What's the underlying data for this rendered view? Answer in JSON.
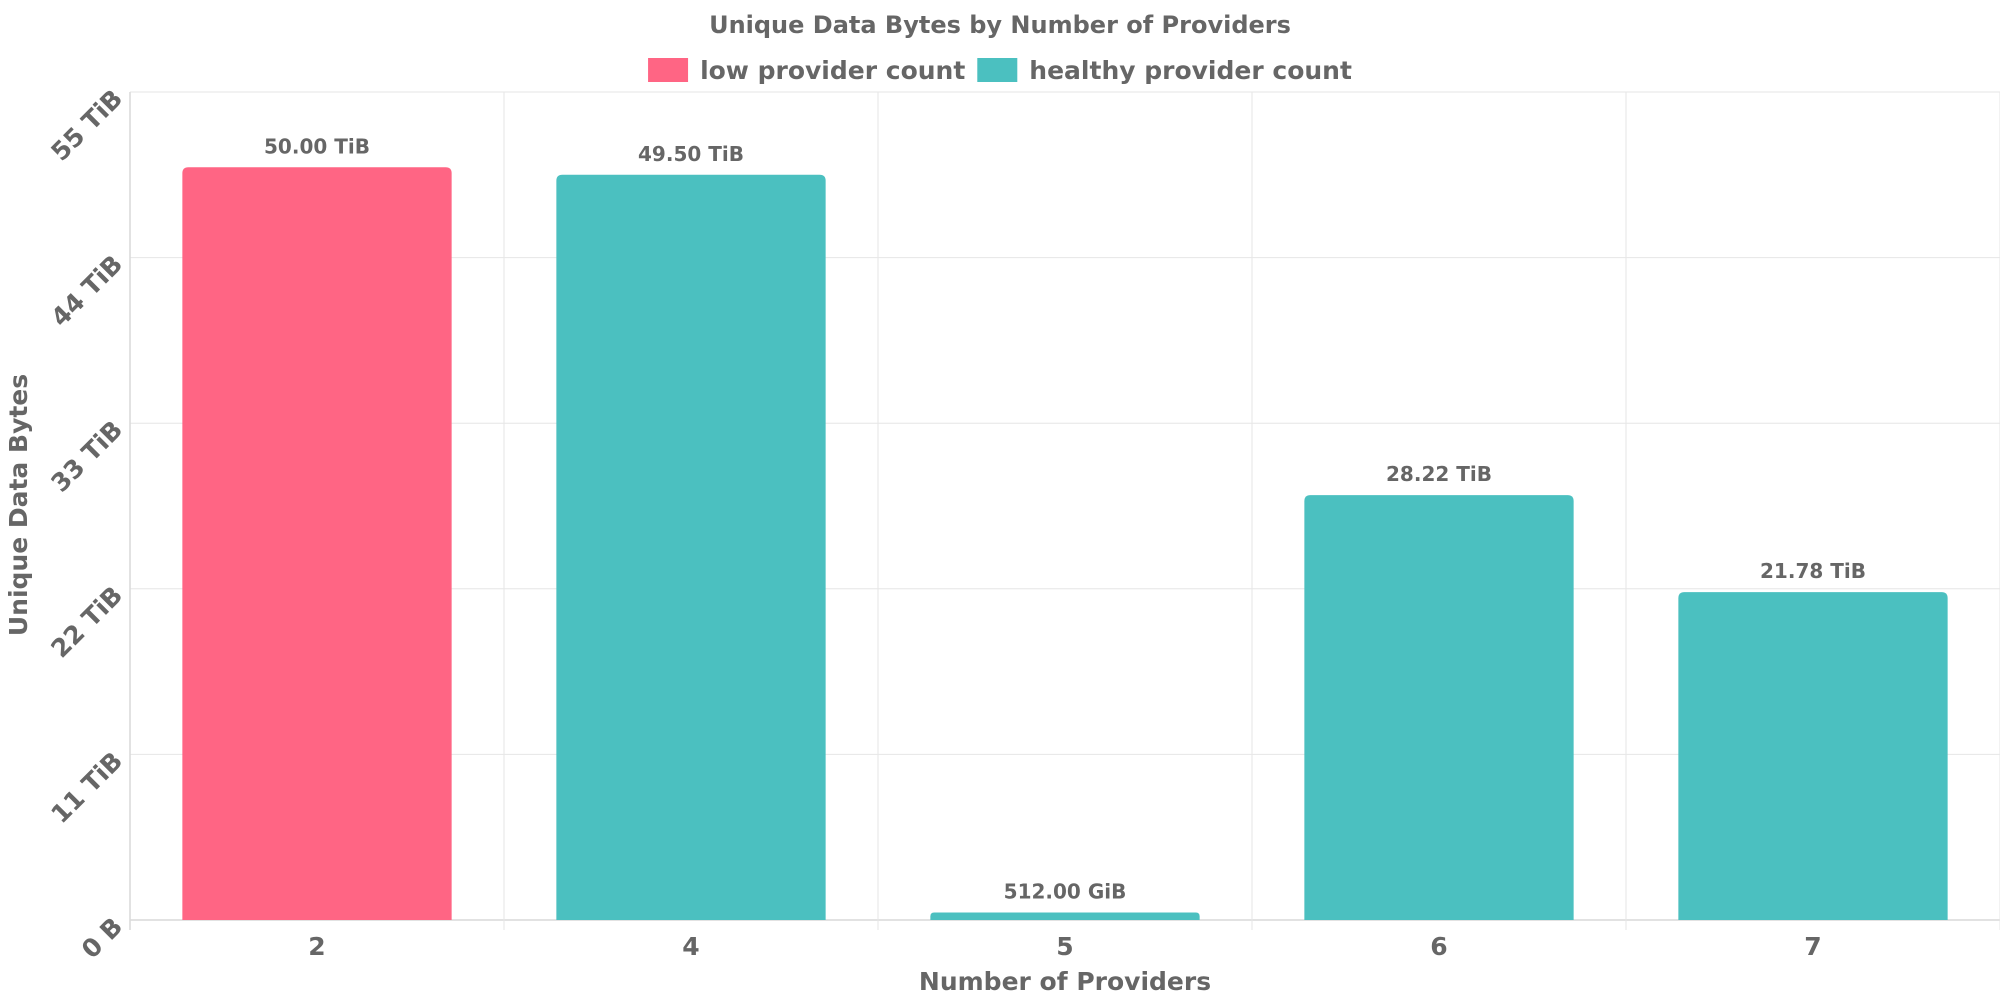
{
  "chart_data": {
    "type": "bar",
    "title": "Unique Data Bytes by Number of Providers",
    "xlabel": "Number of Providers",
    "ylabel": "Unique Data Bytes",
    "categories": [
      "2",
      "4",
      "5",
      "6",
      "7"
    ],
    "values": [
      50.0,
      49.5,
      0.5,
      28.22,
      21.78
    ],
    "value_unit": "TiB",
    "data_labels": [
      "50.00 TiB",
      "49.50 TiB",
      "512.00 GiB",
      "28.22 TiB",
      "21.78 TiB"
    ],
    "bar_series": [
      "low provider count",
      "healthy provider count",
      "healthy provider count",
      "healthy provider count",
      "healthy provider count"
    ],
    "series": [
      {
        "name": "low provider count",
        "color": "#ff6584"
      },
      {
        "name": "healthy provider count",
        "color": "#4bc0c0"
      }
    ],
    "ylim": [
      0,
      55
    ],
    "yticks": [
      0,
      11,
      22,
      33,
      44,
      55
    ],
    "ytick_labels": [
      "0 B",
      "11 TiB",
      "22 TiB",
      "33 TiB",
      "44 TiB",
      "55 TiB"
    ],
    "grid": true,
    "legend_position": "top-center"
  }
}
